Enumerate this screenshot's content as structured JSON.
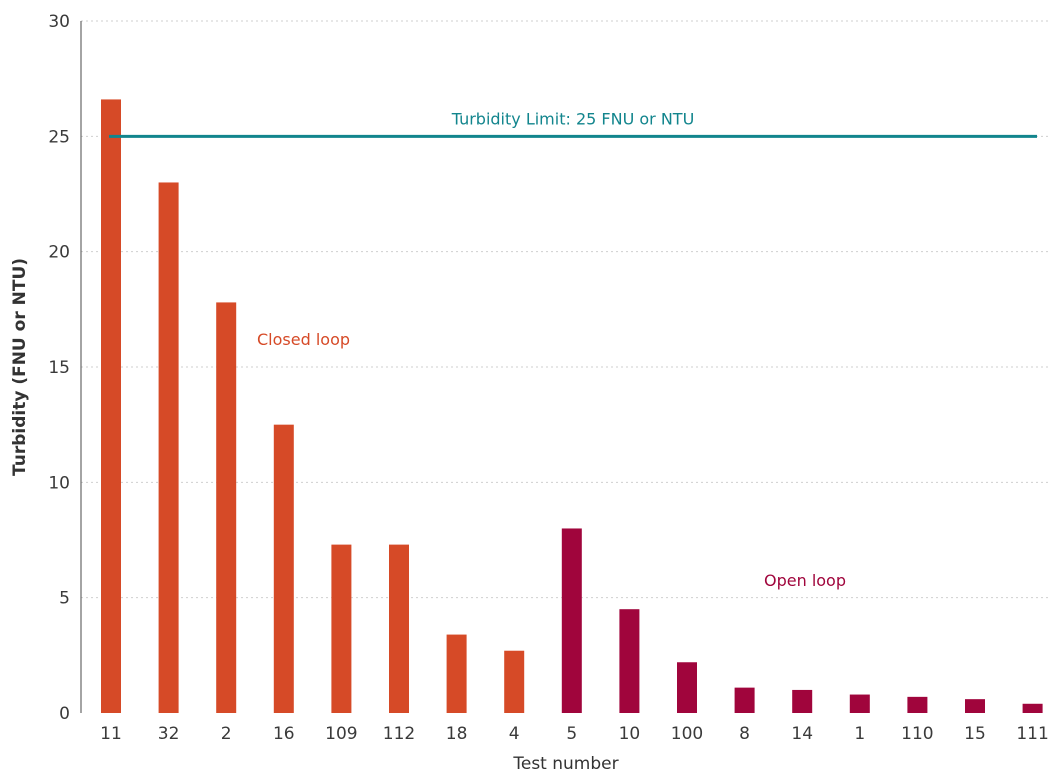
{
  "chart_data": {
    "type": "bar",
    "title": "",
    "xlabel": "Test number",
    "ylabel": "Turbidity (FNU or NTU)",
    "ylim": [
      0,
      30
    ],
    "yticks": [
      0,
      5,
      10,
      15,
      20,
      25,
      30
    ],
    "grid": "horizontal dotted",
    "categories": [
      "11",
      "32",
      "2",
      "16",
      "109",
      "112",
      "18",
      "4",
      "5",
      "10",
      "100",
      "8",
      "14",
      "1",
      "110",
      "15",
      "111"
    ],
    "values": [
      26.6,
      23.0,
      17.8,
      12.5,
      7.3,
      7.3,
      3.4,
      2.7,
      8.0,
      4.5,
      2.2,
      1.1,
      1.0,
      0.8,
      0.7,
      0.6,
      0.4
    ],
    "groups": [
      {
        "name": "Closed loop",
        "color": "#d64a27",
        "categories": [
          "11",
          "32",
          "2",
          "16",
          "109",
          "112",
          "18",
          "4"
        ]
      },
      {
        "name": "Open loop",
        "color": "#a0053c",
        "categories": [
          "5",
          "10",
          "100",
          "8",
          "14",
          "1",
          "110",
          "15",
          "111"
        ]
      }
    ],
    "reference_line": {
      "value": 25,
      "label": "Turbidity Limit: 25 FNU or NTU",
      "color": "#12858d"
    }
  }
}
